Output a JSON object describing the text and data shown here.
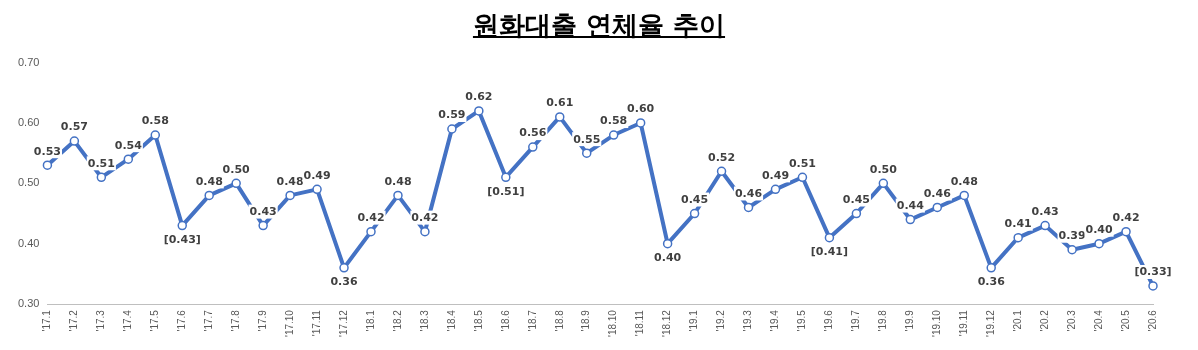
{
  "chart_data": {
    "type": "line",
    "title": "원화대출 연체율 추이",
    "categories": [
      "'17.1",
      "'17.2",
      "'17.3",
      "'17.4",
      "'17.5",
      "'17.6",
      "'17.7",
      "'17.8",
      "'17.9",
      "'17.10",
      "'17.11",
      "'17.12",
      "'18.1",
      "'18.2",
      "'18.3",
      "'18.4",
      "'18.5",
      "'18.6",
      "'18.7",
      "'18.8",
      "'18.9",
      "'18.10",
      "'18.11",
      "'18.12",
      "'19.1",
      "'19.2",
      "'19.3",
      "'19.4",
      "'19.5",
      "'19.6",
      "'19.7",
      "'19.8",
      "'19.9",
      "'19.10",
      "'19.11",
      "'19.12",
      "'20.1",
      "'20.2",
      "'20.3",
      "'20.4",
      "'20.5",
      "'20.6"
    ],
    "series": [
      {
        "color": "#4472c4",
        "values": [
          0.53,
          0.57,
          0.51,
          0.54,
          0.58,
          0.43,
          0.48,
          0.5,
          0.43,
          0.48,
          0.49,
          0.36,
          0.42,
          0.48,
          0.42,
          0.59,
          0.62,
          0.51,
          0.56,
          0.61,
          0.55,
          0.58,
          0.6,
          0.4,
          0.45,
          0.52,
          0.46,
          0.49,
          0.51,
          0.41,
          0.45,
          0.5,
          0.44,
          0.46,
          0.48,
          0.36,
          0.41,
          0.43,
          0.39,
          0.4,
          0.42,
          0.33
        ],
        "value_labels": [
          "0.53",
          "0.57",
          "0.51",
          "0.54",
          "0.58",
          "[0.43]",
          "0.48",
          "0.50",
          "0.43",
          "0.48",
          "0.49",
          "0.36",
          "0.42",
          "0.48",
          "0.42",
          "0.59",
          "0.62",
          "[0.51]",
          "0.56",
          "0.61",
          "0.55",
          "0.58",
          "0.60",
          "0.40",
          "0.45",
          "0.52",
          "0.46",
          "0.49",
          "0.51",
          "[0.41]",
          "0.45",
          "0.50",
          "0.44",
          "0.46",
          "0.48",
          "0.36",
          "0.41",
          "0.43",
          "0.39",
          "0.40",
          "0.42",
          "[0.33]"
        ]
      }
    ],
    "ylim": [
      0.3,
      0.7
    ],
    "yticks": [
      {
        "value": 0.3,
        "label": "0.30"
      },
      {
        "value": 0.4,
        "label": "0.40"
      },
      {
        "value": 0.5,
        "label": "0.50"
      },
      {
        "value": 0.6,
        "label": "0.60"
      },
      {
        "value": 0.7,
        "label": "0.70"
      }
    ],
    "grid": false,
    "legend": false,
    "marker": "circle",
    "line_style": "solid"
  }
}
